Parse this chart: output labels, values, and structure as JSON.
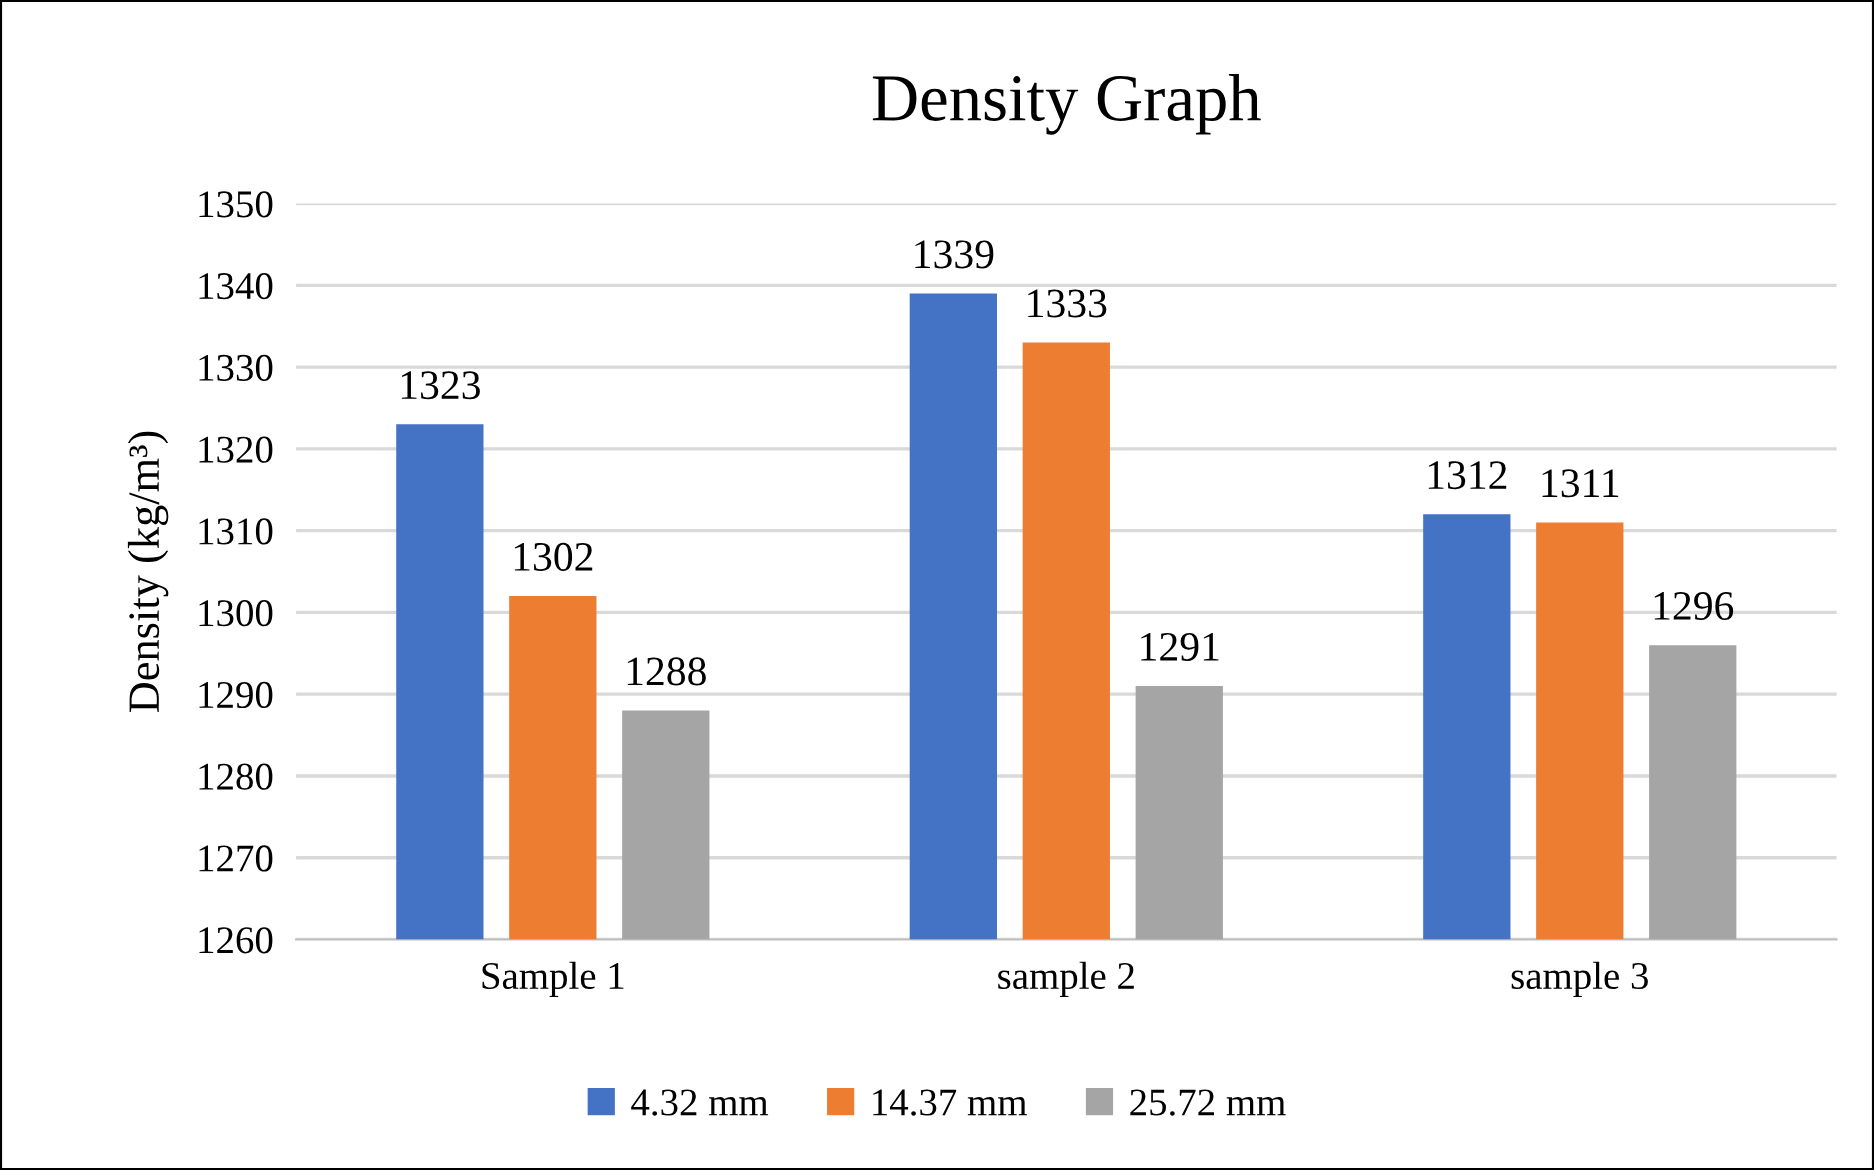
{
  "chart_data": {
    "type": "bar",
    "title": "Density Graph",
    "ylabel": "Density (kg/m³)",
    "categories": [
      "Sample 1",
      "sample 2",
      "sample 3"
    ],
    "series": [
      {
        "name": "4.32 mm",
        "color": "#4472c4",
        "values": [
          1323,
          1339,
          1312
        ]
      },
      {
        "name": "14.37 mm",
        "color": "#ed7d31",
        "values": [
          1302,
          1333,
          1311
        ]
      },
      {
        "name": "25.72 mm",
        "color": "#a5a5a5",
        "values": [
          1288,
          1291,
          1296
        ]
      }
    ],
    "ylim": [
      1260,
      1350
    ],
    "yticks": [
      1260,
      1270,
      1280,
      1290,
      1300,
      1310,
      1320,
      1330,
      1340,
      1350
    ],
    "grid": "y",
    "legend": "bottom",
    "data_labels": true
  }
}
